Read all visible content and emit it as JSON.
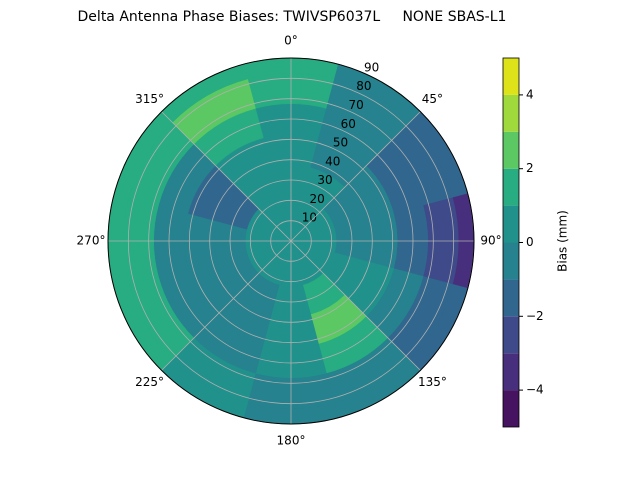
{
  "chart_data": {
    "type": "polar-contour",
    "title": "Delta Antenna Phase Biases: TWIVSP6037L     NONE SBAS-L1",
    "theta": [
      0,
      30,
      60,
      90,
      120,
      150,
      180,
      210,
      240,
      270,
      300,
      330
    ],
    "r": [
      0,
      15,
      30,
      45,
      60,
      75,
      90
    ],
    "z": [
      [
        0.5,
        0.5,
        0.5,
        0.5,
        0.5,
        0.5,
        0.5,
        0.5,
        0.5,
        0.5,
        0.5,
        0.5
      ],
      [
        0.5,
        0.5,
        0.5,
        0.5,
        0.5,
        0.5,
        0.5,
        0.5,
        0.5,
        0.5,
        0.5,
        0.5
      ],
      [
        0.5,
        0.5,
        -0.5,
        -0.5,
        0.5,
        1.5,
        0.5,
        -0.5,
        -0.5,
        -0.5,
        -1.5,
        0.5
      ],
      [
        0.5,
        -0.5,
        -0.5,
        -0.5,
        0.5,
        2.5,
        0.5,
        -0.5,
        -0.5,
        -0.5,
        -1.5,
        0.5
      ],
      [
        0.5,
        -0.5,
        -1.5,
        -1.5,
        -0.5,
        1.5,
        0.5,
        -0.5,
        -0.5,
        -0.5,
        -0.5,
        1.5
      ],
      [
        1.5,
        -0.5,
        -1.5,
        -2.5,
        -1.5,
        -0.5,
        -0.5,
        0.5,
        1.5,
        1.5,
        1.5,
        2.5
      ],
      [
        1.5,
        -0.5,
        -1.5,
        -3.5,
        -1.5,
        -0.5,
        -0.5,
        0.5,
        1.5,
        1.5,
        1.5,
        1.5
      ]
    ],
    "rlim": [
      0,
      90
    ],
    "rticks": [
      10,
      20,
      30,
      40,
      50,
      60,
      70,
      80,
      90
    ],
    "thetaticks": [
      {
        "value": 0,
        "label": "0°"
      },
      {
        "value": 45,
        "label": "45°"
      },
      {
        "value": 90,
        "label": "90°"
      },
      {
        "value": 135,
        "label": "135°"
      },
      {
        "value": 180,
        "label": "180°"
      },
      {
        "value": 225,
        "label": "225°"
      },
      {
        "value": 270,
        "label": "270°"
      },
      {
        "value": 315,
        "label": "315°"
      }
    ],
    "levels": [
      -5,
      -4,
      -3,
      -2,
      -1,
      0,
      1,
      2,
      3,
      4,
      5
    ],
    "colors": [
      "#45135f",
      "#482f7d",
      "#3e4a89",
      "#31678e",
      "#26828e",
      "#21918c",
      "#27ad81",
      "#5cc863",
      "#a0d93b",
      "#dde318"
    ],
    "colorbar_label": "Bias (mm)",
    "cticks": [
      {
        "value": -4,
        "label": "−4"
      },
      {
        "value": -2,
        "label": "−2"
      },
      0,
      2,
      4
    ],
    "grid": true
  }
}
